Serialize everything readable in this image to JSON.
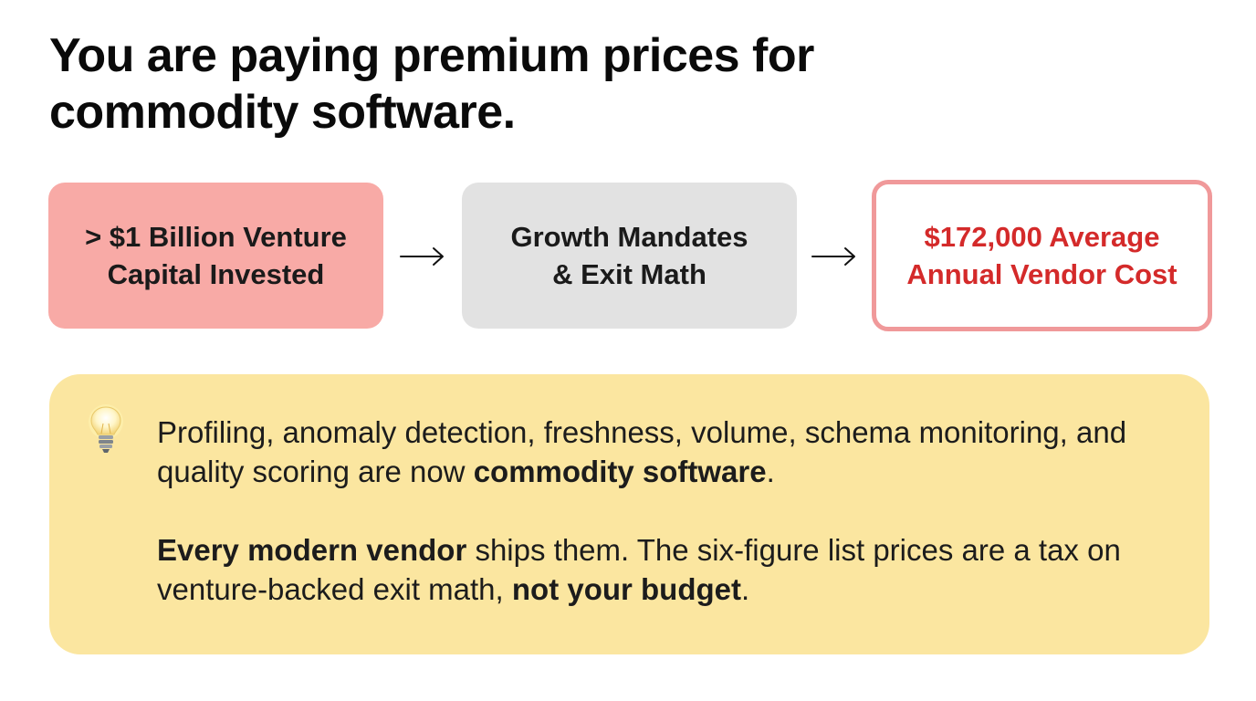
{
  "heading": {
    "line1": "You are paying premium prices for",
    "line2": "commodity software."
  },
  "flow": {
    "step1": {
      "line1": "> $1 Billion Venture",
      "line2": "Capital Invested",
      "color": "#f8aaa6"
    },
    "step2": {
      "line1": "Growth Mandates",
      "line2": "& Exit Math",
      "color": "#e2e2e2"
    },
    "step3": {
      "line1": "$172,000 Average",
      "line2": "Annual Vendor Cost",
      "color": "#d42a2a",
      "border_color": "#f0999a"
    },
    "arrow_icon": "right-arrow-icon"
  },
  "callout": {
    "icon": "lightbulb-icon",
    "background": "#fbe6a0",
    "paragraph1": {
      "text_before": "Profiling, anomaly detection, freshness, volume, schema monitoring, and quality scoring are now ",
      "bold": "commodity software",
      "text_after": "."
    },
    "paragraph2": {
      "bold1": "Every modern vendor",
      "text_middle": " ships them. The six-figure list prices are a tax on venture-backed exit math, ",
      "bold2": "not your budget",
      "text_after": "."
    }
  }
}
